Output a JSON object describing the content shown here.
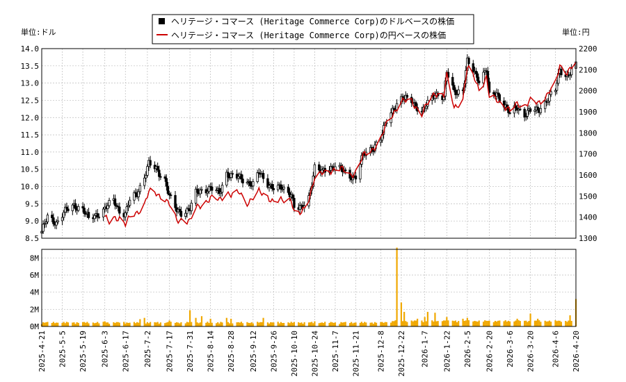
{
  "chart_data": [
    {
      "type": "candlestick",
      "panel": "price",
      "legend": [
        {
          "label": "ヘリテージ・コマース (Heritage Commerce Corp)のドルベースの株価",
          "marker": "square",
          "color": "#000000"
        },
        {
          "label": "ヘリテージ・コマース (Heritage Commerce Corp)の円ベースの株価",
          "marker": "line",
          "color": "#cc0000"
        }
      ],
      "y_left_label": "単位:ドル",
      "y_right_label": "単位:円",
      "y_left_range": [
        8.5,
        14.0
      ],
      "y_left_ticks": [
        "8.5",
        "9.0",
        "9.5",
        "10.0",
        "10.5",
        "11.0",
        "11.5",
        "12.0",
        "12.5",
        "13.0",
        "13.5",
        "14.0"
      ],
      "y_right_range": [
        1300,
        2200
      ],
      "y_right_ticks": [
        "1300",
        "1400",
        "1500",
        "1600",
        "1700",
        "1800",
        "1900",
        "2000",
        "2100",
        "2200"
      ],
      "usd_close_points": [
        [
          "2025-04-21",
          8.7
        ],
        [
          "2025-04-25",
          9.1
        ],
        [
          "2025-05-01",
          8.95
        ],
        [
          "2025-05-06",
          9.25
        ],
        [
          "2025-05-13",
          9.45
        ],
        [
          "2025-05-19",
          9.35
        ],
        [
          "2025-05-23",
          9.05
        ],
        [
          "2025-05-29",
          9.2
        ],
        [
          "2025-06-03",
          9.35
        ],
        [
          "2025-06-09",
          9.6
        ],
        [
          "2025-06-13",
          9.3
        ],
        [
          "2025-06-17",
          9.2
        ],
        [
          "2025-06-20",
          9.6
        ],
        [
          "2025-06-25",
          9.8
        ],
        [
          "2025-06-30",
          10.3
        ],
        [
          "2025-07-03",
          10.65
        ],
        [
          "2025-07-08",
          10.5
        ],
        [
          "2025-07-14",
          10.2
        ],
        [
          "2025-07-17",
          9.7
        ],
        [
          "2025-07-22",
          9.3
        ],
        [
          "2025-07-25",
          9.25
        ],
        [
          "2025-07-31",
          9.35
        ],
        [
          "2025-08-04",
          9.8
        ],
        [
          "2025-08-08",
          9.9
        ],
        [
          "2025-08-14",
          9.95
        ],
        [
          "2025-08-20",
          9.8
        ],
        [
          "2025-08-25",
          10.4
        ],
        [
          "2025-08-28",
          10.3
        ],
        [
          "2025-09-03",
          10.25
        ],
        [
          "2025-09-08",
          10.15
        ],
        [
          "2025-09-12",
          10.05
        ],
        [
          "2025-09-16",
          10.4
        ],
        [
          "2025-09-22",
          10.1
        ],
        [
          "2025-09-26",
          9.95
        ],
        [
          "2025-10-02",
          9.95
        ],
        [
          "2025-10-08",
          9.8
        ],
        [
          "2025-10-10",
          9.4
        ],
        [
          "2025-10-15",
          9.35
        ],
        [
          "2025-10-20",
          9.7
        ],
        [
          "2025-10-24",
          10.55
        ],
        [
          "2025-10-29",
          10.4
        ],
        [
          "2025-11-03",
          10.55
        ],
        [
          "2025-11-07",
          10.6
        ],
        [
          "2025-11-12",
          10.45
        ],
        [
          "2025-11-17",
          10.3
        ],
        [
          "2025-11-21",
          10.3
        ],
        [
          "2025-11-26",
          10.9
        ],
        [
          "2025-12-02",
          11.1
        ],
        [
          "2025-12-08",
          11.4
        ],
        [
          "2025-12-12",
          11.9
        ],
        [
          "2025-12-17",
          12.3
        ],
        [
          "2025-12-22",
          12.55
        ],
        [
          "2025-12-29",
          12.5
        ],
        [
          "2026-01-05",
          12.15
        ],
        [
          "2026-01-09",
          12.4
        ],
        [
          "2026-01-14",
          12.7
        ],
        [
          "2026-01-20",
          12.6
        ],
        [
          "2026-01-22",
          13.3
        ],
        [
          "2026-01-27",
          12.75
        ],
        [
          "2026-02-02",
          12.8
        ],
        [
          "2026-02-05",
          13.6
        ],
        [
          "2026-02-10",
          13.3
        ],
        [
          "2026-02-13",
          13.1
        ],
        [
          "2026-02-18",
          13.4
        ],
        [
          "2026-02-20",
          12.6
        ],
        [
          "2026-02-25",
          12.7
        ],
        [
          "2026-03-02",
          12.4
        ],
        [
          "2026-03-06",
          12.1
        ],
        [
          "2026-03-11",
          12.3
        ],
        [
          "2026-03-16",
          12.1
        ],
        [
          "2026-03-20",
          12.2
        ],
        [
          "2026-03-25",
          12.2
        ],
        [
          "2026-03-31",
          12.5
        ],
        [
          "2026-04-06",
          12.8
        ],
        [
          "2026-04-09",
          13.4
        ],
        [
          "2026-04-14",
          13.2
        ],
        [
          "2026-04-20",
          13.5
        ]
      ],
      "jpy_points": [
        [
          "2025-06-03",
          1403
        ],
        [
          "2025-06-06",
          1371
        ],
        [
          "2025-06-09",
          1390
        ],
        [
          "2025-06-13",
          1400
        ],
        [
          "2025-06-17",
          1370
        ],
        [
          "2025-06-20",
          1395
        ],
        [
          "2025-06-25",
          1420
        ],
        [
          "2025-06-30",
          1465
        ],
        [
          "2025-07-03",
          1520
        ],
        [
          "2025-07-08",
          1510
        ],
        [
          "2025-07-14",
          1490
        ],
        [
          "2025-07-17",
          1460
        ],
        [
          "2025-07-22",
          1380
        ],
        [
          "2025-07-25",
          1390
        ],
        [
          "2025-07-31",
          1380
        ],
        [
          "2025-08-04",
          1440
        ],
        [
          "2025-08-08",
          1460
        ],
        [
          "2025-08-14",
          1490
        ],
        [
          "2025-08-20",
          1480
        ],
        [
          "2025-08-25",
          1520
        ],
        [
          "2025-08-28",
          1505
        ],
        [
          "2025-09-03",
          1515
        ],
        [
          "2025-09-08",
          1470
        ],
        [
          "2025-09-12",
          1490
        ],
        [
          "2025-09-16",
          1520
        ],
        [
          "2025-09-22",
          1500
        ],
        [
          "2025-09-26",
          1470
        ],
        [
          "2025-10-02",
          1480
        ],
        [
          "2025-10-08",
          1490
        ],
        [
          "2025-10-10",
          1420
        ],
        [
          "2025-10-15",
          1415
        ],
        [
          "2025-10-20",
          1490
        ],
        [
          "2025-10-24",
          1590
        ],
        [
          "2025-10-29",
          1605
        ],
        [
          "2025-11-03",
          1620
        ],
        [
          "2025-11-07",
          1630
        ],
        [
          "2025-11-12",
          1625
        ],
        [
          "2025-11-17",
          1600
        ],
        [
          "2025-11-21",
          1615
        ],
        [
          "2025-11-26",
          1690
        ],
        [
          "2025-12-02",
          1720
        ],
        [
          "2025-12-08",
          1770
        ],
        [
          "2025-12-12",
          1840
        ],
        [
          "2025-12-17",
          1900
        ],
        [
          "2025-12-22",
          1950
        ],
        [
          "2025-12-29",
          1950
        ],
        [
          "2026-01-05",
          1890
        ],
        [
          "2026-01-09",
          1940
        ],
        [
          "2026-01-14",
          1990
        ],
        [
          "2026-01-20",
          1980
        ],
        [
          "2026-01-22",
          2070
        ],
        [
          "2026-01-27",
          1920
        ],
        [
          "2026-02-02",
          1960
        ],
        [
          "2026-02-05",
          2110
        ],
        [
          "2026-02-10",
          2060
        ],
        [
          "2026-02-13",
          2010
        ],
        [
          "2026-02-18",
          2060
        ],
        [
          "2026-02-20",
          1970
        ],
        [
          "2026-02-25",
          1960
        ],
        [
          "2026-03-02",
          1930
        ],
        [
          "2026-03-06",
          1900
        ],
        [
          "2026-03-11",
          1940
        ],
        [
          "2026-03-16",
          1930
        ],
        [
          "2026-03-20",
          1950
        ],
        [
          "2026-03-25",
          1940
        ],
        [
          "2026-03-31",
          1980
        ],
        [
          "2026-04-06",
          2030
        ],
        [
          "2026-04-09",
          2120
        ],
        [
          "2026-04-14",
          2090
        ],
        [
          "2026-04-20",
          2130
        ]
      ]
    },
    {
      "type": "bar",
      "panel": "volume",
      "color": "#f0a800",
      "y_range": [
        0,
        9000000
      ],
      "y_ticks": [
        "0M",
        "2M",
        "4M",
        "6M",
        "8M"
      ],
      "volume_points": [
        [
          "2025-05-27",
          380000
        ],
        [
          "2025-06-03",
          600000
        ],
        [
          "2025-06-25",
          500000
        ],
        [
          "2025-06-27",
          850000
        ],
        [
          "2025-06-30",
          1000000
        ],
        [
          "2025-07-17",
          700000
        ],
        [
          "2025-07-31",
          1900000
        ],
        [
          "2025-08-04",
          1000000
        ],
        [
          "2025-08-08",
          1200000
        ],
        [
          "2025-08-14",
          900000
        ],
        [
          "2025-08-25",
          1000000
        ],
        [
          "2025-08-28",
          900000
        ],
        [
          "2025-09-19",
          1000000
        ],
        [
          "2025-10-24",
          600000
        ],
        [
          "2025-12-12",
          500000
        ],
        [
          "2025-12-19",
          9200000
        ],
        [
          "2025-12-22",
          2800000
        ],
        [
          "2025-12-24",
          1700000
        ],
        [
          "2026-01-02",
          900000
        ],
        [
          "2026-01-07",
          1100000
        ],
        [
          "2026-01-09",
          1700000
        ],
        [
          "2026-01-14",
          1600000
        ],
        [
          "2026-01-20",
          700000
        ],
        [
          "2026-01-22",
          1100000
        ],
        [
          "2026-02-02",
          900000
        ],
        [
          "2026-02-05",
          1000000
        ],
        [
          "2026-03-11",
          900000
        ],
        [
          "2026-03-20",
          1500000
        ],
        [
          "2026-03-25",
          900000
        ],
        [
          "2026-04-16",
          1300000
        ],
        [
          "2026-04-20",
          3200000
        ]
      ]
    }
  ],
  "x_axis": {
    "range": [
      "2025-04-21",
      "2026-04-20"
    ],
    "ticks": [
      "2025-4-21",
      "2025-5-5",
      "2025-5-19",
      "2025-6-3",
      "2025-6-17",
      "2025-7-2",
      "2025-7-17",
      "2025-7-31",
      "2025-8-14",
      "2025-8-28",
      "2025-9-12",
      "2025-9-26",
      "2025-10-10",
      "2025-10-24",
      "2025-11-7",
      "2025-11-21",
      "2025-12-8",
      "2025-12-22",
      "2026-1-7",
      "2026-1-22",
      "2026-2-5",
      "2026-2-20",
      "2026-3-6",
      "2026-3-20",
      "2026-4-6",
      "2026-4-20"
    ]
  },
  "grid": true
}
